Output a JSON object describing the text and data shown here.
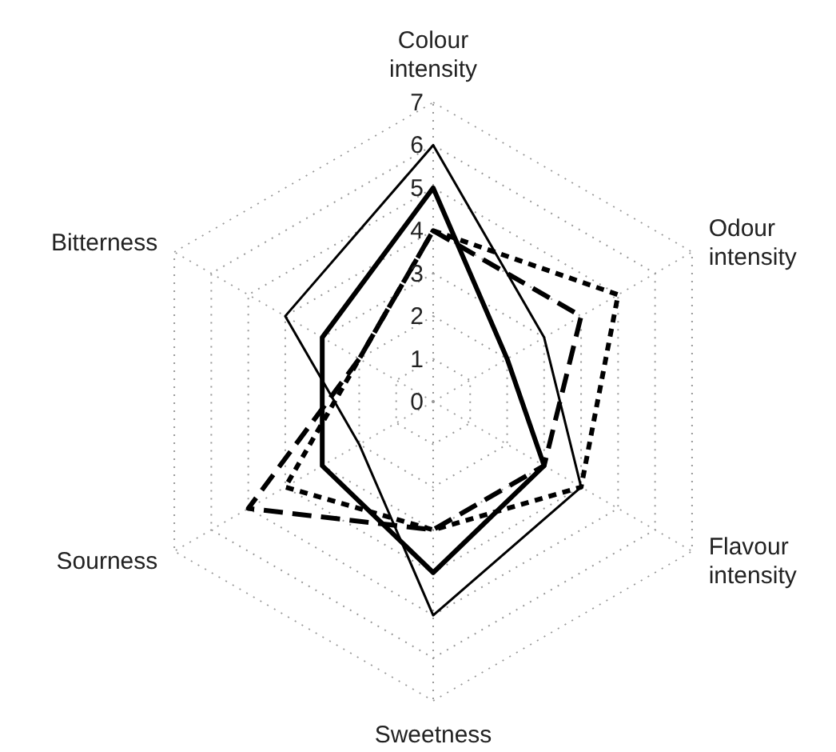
{
  "chart_data": {
    "type": "radar",
    "categories": [
      "Colour intensity",
      "Odour intensity",
      "Flavour intensity",
      "Sweetness",
      "Sourness",
      "Bitterness"
    ],
    "series": [
      {
        "color": "#000000",
        "line_style": "solid",
        "values": [
          6,
          3,
          4,
          5,
          2,
          4
        ]
      },
      {
        "color": "#000000",
        "line_style": "solid",
        "values": [
          5,
          2,
          3,
          4,
          3,
          3
        ]
      },
      {
        "color": "#000000",
        "line_style": "dashed",
        "values": [
          4,
          4,
          3,
          3,
          5,
          2
        ]
      },
      {
        "color": "#000000",
        "line_style": "dotted",
        "values": [
          4,
          5,
          4,
          3,
          4,
          2
        ]
      }
    ],
    "ylim": [
      0,
      7
    ],
    "yticks": [
      0,
      1,
      2,
      3,
      4,
      5,
      6,
      7
    ],
    "grid": true,
    "marker": "none"
  }
}
